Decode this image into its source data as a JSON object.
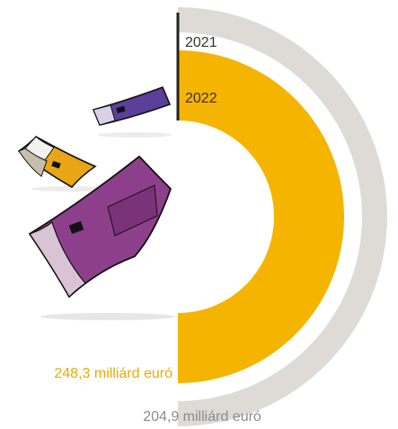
{
  "chart_data": {
    "type": "bar",
    "shape": "half-donut",
    "categories": [
      "2021",
      "2022"
    ],
    "values": [
      204.9,
      248.3
    ],
    "value_labels": [
      "204,9 milliárd euró",
      "248,3 milliárd euró"
    ],
    "colors": {
      "2021": "#dedbd7",
      "2022": "#f5b400"
    },
    "label_colors": {
      "2021": "#8c8c8c",
      "2022": "#f0a800"
    },
    "title": "",
    "legend": "none",
    "grid": false
  },
  "illustration": {
    "name": "flying-euro-banknotes",
    "notes": [
      {
        "color": "#5b3f99",
        "denomination": "euro-500"
      },
      {
        "color": "#e8a617",
        "denomination": "euro-50"
      },
      {
        "color": "#8e3f8b",
        "denomination": "euro-500"
      }
    ]
  }
}
